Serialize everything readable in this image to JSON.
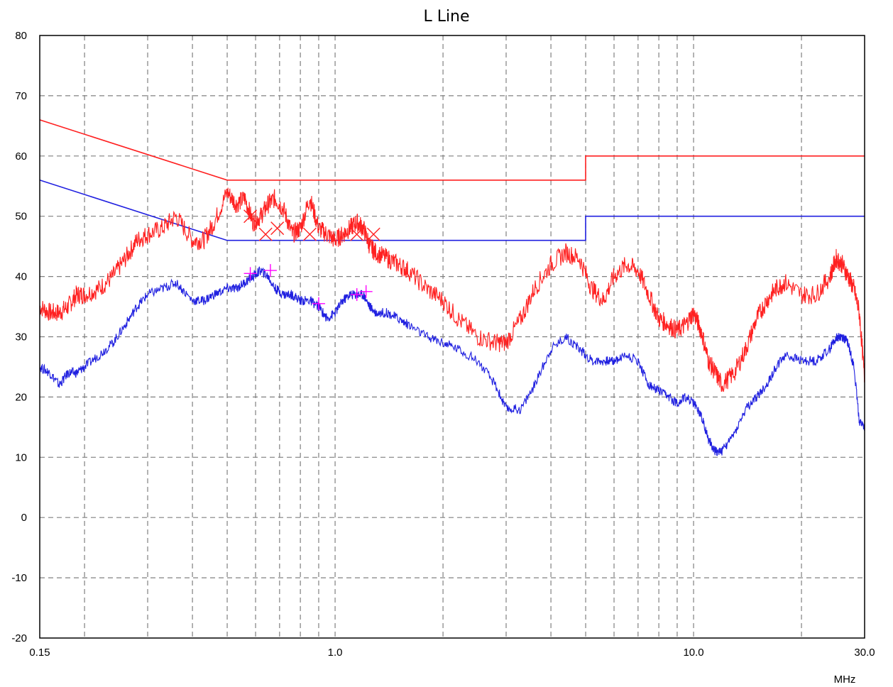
{
  "chart_data": {
    "type": "line",
    "title": "L Line",
    "xlabel": "MHz",
    "ylabel": "",
    "x_scale": "log",
    "xlim": [
      0.15,
      30.0
    ],
    "ylim": [
      -20,
      80
    ],
    "grid": true,
    "x_tick_labels": [
      "0.15",
      "1.0",
      "10.0",
      "30.0"
    ],
    "x_tick_values": [
      0.15,
      1.0,
      10.0,
      30.0
    ],
    "y_ticks": [
      80,
      70,
      60,
      50,
      40,
      30,
      20,
      10,
      0,
      -10,
      -20
    ],
    "x_grid": [
      0.2,
      0.3,
      0.4,
      0.5,
      0.6,
      0.7,
      0.8,
      0.9,
      1.0,
      2,
      3,
      4,
      5,
      6,
      7,
      8,
      9,
      10,
      20,
      30
    ],
    "limits": [
      {
        "color": "#ff2020",
        "x": [
          0.15,
          0.5,
          5.0,
          5.0,
          30.0
        ],
        "y": [
          66,
          56,
          56,
          60,
          60
        ]
      },
      {
        "color": "#2020e0",
        "x": [
          0.15,
          0.5,
          5.0,
          5.0,
          30.0
        ],
        "y": [
          56,
          46,
          46,
          50,
          50
        ]
      }
    ],
    "series": [
      {
        "color": "#ff2020",
        "x": [
          0.15,
          0.16,
          0.17,
          0.18,
          0.19,
          0.2,
          0.22,
          0.24,
          0.26,
          0.28,
          0.3,
          0.33,
          0.36,
          0.4,
          0.43,
          0.46,
          0.5,
          0.53,
          0.56,
          0.59,
          0.62,
          0.65,
          0.68,
          0.72,
          0.76,
          0.8,
          0.85,
          0.9,
          0.95,
          1.0,
          1.05,
          1.1,
          1.15,
          1.2,
          1.25,
          1.3,
          1.4,
          1.5,
          1.6,
          1.8,
          2.0,
          2.2,
          2.5,
          2.8,
          3.0,
          3.3,
          3.6,
          4.0,
          4.4,
          4.8,
          5.2,
          5.6,
          6.0,
          6.5,
          7.0,
          7.5,
          8.0,
          8.5,
          9.0,
          9.5,
          10.0,
          10.5,
          11.0,
          11.5,
          12.0,
          13.0,
          14.0,
          15.0,
          16.0,
          17.0,
          18.0,
          20.0,
          22.0,
          24.0,
          25.0,
          26.0,
          27.0,
          28.0,
          29.0,
          30.0
        ],
        "y": [
          35,
          34,
          34,
          35,
          37,
          37,
          38,
          40,
          43,
          46,
          47,
          48,
          50,
          46,
          46,
          49,
          54,
          52,
          53,
          49,
          50,
          52,
          53,
          51,
          47,
          48,
          53,
          48,
          47,
          46,
          47,
          48,
          49,
          48,
          45,
          44,
          43,
          42,
          41,
          38,
          36,
          33,
          30,
          29,
          29,
          33,
          38,
          42,
          44,
          43,
          38,
          36,
          40,
          42,
          41,
          37,
          33,
          32,
          31,
          32,
          34,
          31,
          26,
          24,
          22,
          24,
          28,
          33,
          36,
          38,
          39,
          37,
          37,
          40,
          43,
          42,
          40,
          38,
          34,
          23
        ]
      },
      {
        "color": "#2020e0",
        "x": [
          0.15,
          0.16,
          0.17,
          0.18,
          0.19,
          0.2,
          0.22,
          0.24,
          0.26,
          0.28,
          0.3,
          0.33,
          0.36,
          0.4,
          0.43,
          0.46,
          0.5,
          0.53,
          0.56,
          0.59,
          0.62,
          0.65,
          0.68,
          0.72,
          0.76,
          0.8,
          0.85,
          0.9,
          0.95,
          1.0,
          1.05,
          1.1,
          1.15,
          1.2,
          1.25,
          1.3,
          1.4,
          1.5,
          1.6,
          1.8,
          2.0,
          2.2,
          2.5,
          2.8,
          3.0,
          3.3,
          3.6,
          4.0,
          4.4,
          4.8,
          5.2,
          5.6,
          6.0,
          6.5,
          7.0,
          7.5,
          8.0,
          8.5,
          9.0,
          9.5,
          10.0,
          10.5,
          11.0,
          11.5,
          12.0,
          13.0,
          14.0,
          15.0,
          16.0,
          17.0,
          18.0,
          20.0,
          22.0,
          24.0,
          25.0,
          26.0,
          27.0,
          28.0,
          29.0,
          30.0
        ],
        "y": [
          25,
          24,
          22,
          24,
          24,
          25,
          27,
          29,
          32,
          35,
          37,
          38,
          39,
          36,
          36,
          37,
          38,
          38,
          39,
          40,
          41,
          40,
          38,
          37,
          37,
          36,
          36,
          35,
          33,
          34,
          36,
          37,
          37,
          37,
          35,
          34,
          34,
          33,
          32,
          30,
          29,
          28,
          26,
          22,
          18,
          18,
          22,
          28,
          30,
          28,
          26,
          26,
          26,
          27,
          26,
          22,
          21,
          20,
          19,
          20,
          19,
          17,
          13,
          11,
          11,
          14,
          18,
          20,
          22,
          25,
          27,
          26,
          26,
          28,
          30,
          30,
          29,
          25,
          16,
          15
        ]
      }
    ],
    "markers": [
      {
        "symbol": "x",
        "color": "#ff2020",
        "x": [
          0.58,
          0.64,
          0.69,
          0.85,
          1.15,
          1.28
        ],
        "y": [
          50,
          47,
          48,
          47,
          47,
          47
        ]
      },
      {
        "symbol": "+",
        "color": "#ff00ff",
        "x": [
          0.58,
          0.66,
          0.9,
          1.15,
          1.22
        ],
        "y": [
          40.5,
          41,
          35.5,
          37,
          37.5
        ]
      }
    ]
  }
}
